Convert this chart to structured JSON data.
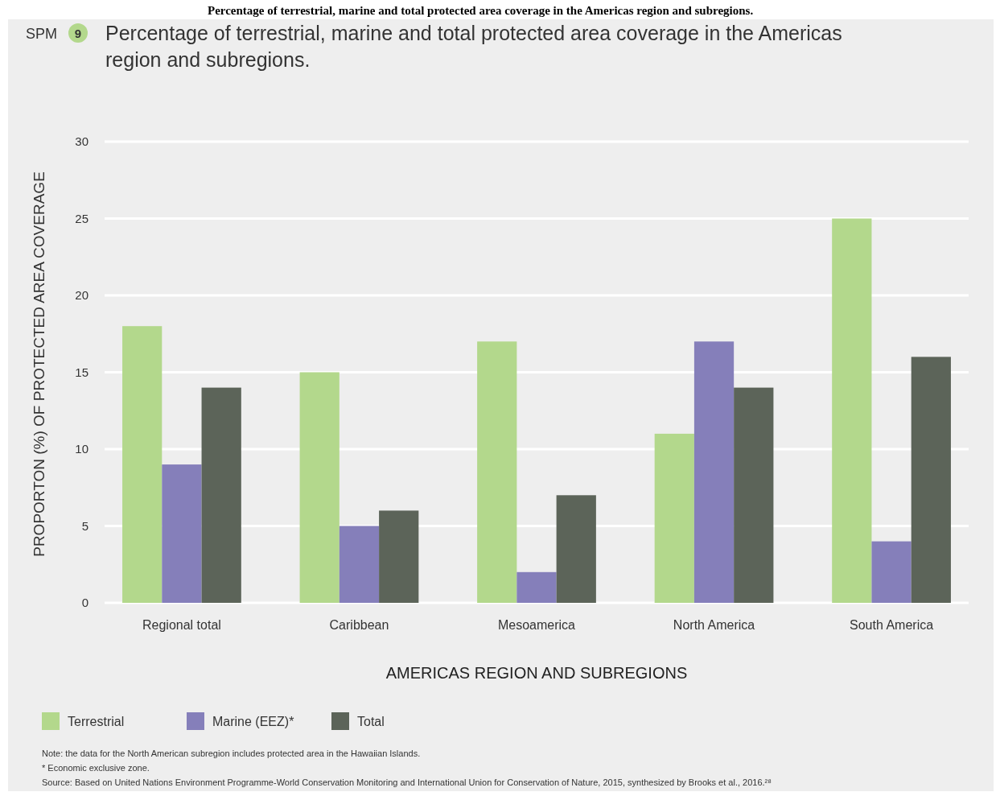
{
  "chart_data": {
    "type": "bar",
    "title": "Percentage of terrestrial, marine and total protected area coverage in the Americas region and subregions.",
    "xlabel": "AMERICAS REGION AND SUBREGIONS",
    "ylabel": "PROPORTON (%) OF PROTECTED AREA COVERAGE",
    "categories": [
      "Regional total",
      "Caribbean",
      "Mesoamerica",
      "North America",
      "South America"
    ],
    "series": [
      {
        "name": "Terrestrial",
        "color": "#b3d88c",
        "values": [
          18,
          15,
          17,
          11,
          25
        ]
      },
      {
        "name": "Marine (EEZ)*",
        "color": "#857fba",
        "values": [
          9,
          5,
          2,
          17,
          4
        ]
      },
      {
        "name": "Total",
        "color": "#5c6459",
        "values": [
          14,
          6,
          7,
          14,
          16
        ]
      }
    ],
    "ylim": [
      0,
      30
    ],
    "yticks": [
      0,
      5,
      10,
      15,
      20,
      25,
      30
    ],
    "grid": "y",
    "legend": "bottom left",
    "annotations": [
      "Percentage of terrestrial, marine and total protected area coverage in the Americas region and subregions.",
      "SPM 9",
      "Note: the data for the North American subregion includes protected area in the Hawaiian Islands.",
      "* Economic exclusive zone.",
      "Source: Based on United Nations Environment Programme-World Conservation Monitoring and International Union for Conservation of Nature, 2015, synthesized by Brooks et al., 2016.²⁸"
    ]
  }
}
